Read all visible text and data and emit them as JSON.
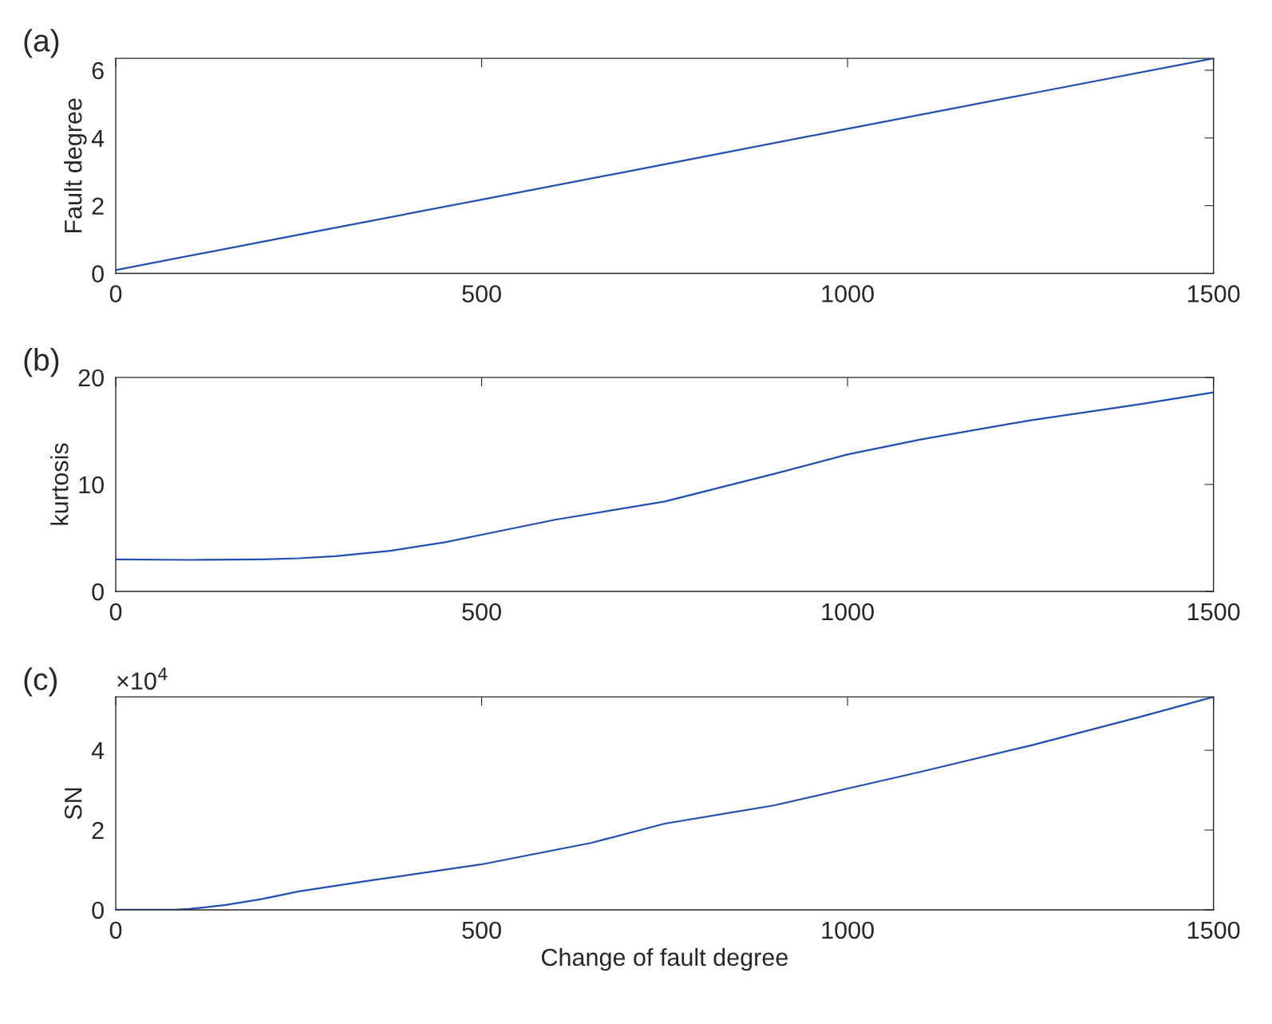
{
  "chart_data": [
    {
      "type": "line",
      "title": "(a)",
      "ylabel": "Fault degree",
      "x": [
        0,
        250,
        500,
        750,
        1000,
        1250,
        1500
      ],
      "series": [
        {
          "color": "#1f4fb4",
          "values": [
            0.1,
            1.14,
            2.18,
            3.22,
            4.27,
            5.31,
            6.35
          ]
        }
      ],
      "xlim": [
        0,
        1500
      ],
      "xticks": [
        0,
        500,
        1000,
        1500
      ],
      "ylim": [
        0,
        6.35
      ],
      "yticks": [
        0,
        2,
        4,
        6
      ],
      "grid": false,
      "legend": false
    },
    {
      "type": "line",
      "title": "(b)",
      "ylabel": "kurtosis",
      "x": [
        0,
        100,
        200,
        250,
        300,
        375,
        450,
        500,
        600,
        750,
        900,
        1000,
        1100,
        1250,
        1400,
        1500
      ],
      "series": [
        {
          "color": "#1f4fb4",
          "values": [
            3.0,
            2.95,
            3.0,
            3.1,
            3.3,
            3.8,
            4.6,
            5.3,
            6.7,
            8.4,
            11.0,
            12.8,
            14.2,
            16.0,
            17.5,
            18.6
          ]
        }
      ],
      "xlim": [
        0,
        1500
      ],
      "xticks": [
        0,
        500,
        1000,
        1500
      ],
      "ylim": [
        0,
        20
      ],
      "yticks": [
        0,
        10,
        20
      ],
      "grid": false,
      "legend": false
    },
    {
      "type": "line",
      "title": "(c)",
      "ylabel": "SN",
      "xlabel": "Change of fault degree",
      "annotations": [
        "×10$^{4}$"
      ],
      "x": [
        0,
        50,
        80,
        100,
        150,
        200,
        250,
        350,
        500,
        650,
        750,
        900,
        1000,
        1100,
        1250,
        1400,
        1500
      ],
      "series": [
        {
          "color": "#1f4fb4",
          "values": [
            0,
            0,
            0.0,
            0.02,
            0.12,
            0.27,
            0.46,
            0.74,
            1.14,
            1.68,
            2.16,
            2.62,
            3.04,
            3.46,
            4.12,
            4.84,
            5.34
          ]
        }
      ],
      "xlim": [
        0,
        1500
      ],
      "xticks": [
        0,
        500,
        1000,
        1500
      ],
      "ylim": [
        0,
        5.34
      ],
      "yticks": [
        0,
        2,
        4
      ],
      "grid": false,
      "legend": false
    }
  ]
}
